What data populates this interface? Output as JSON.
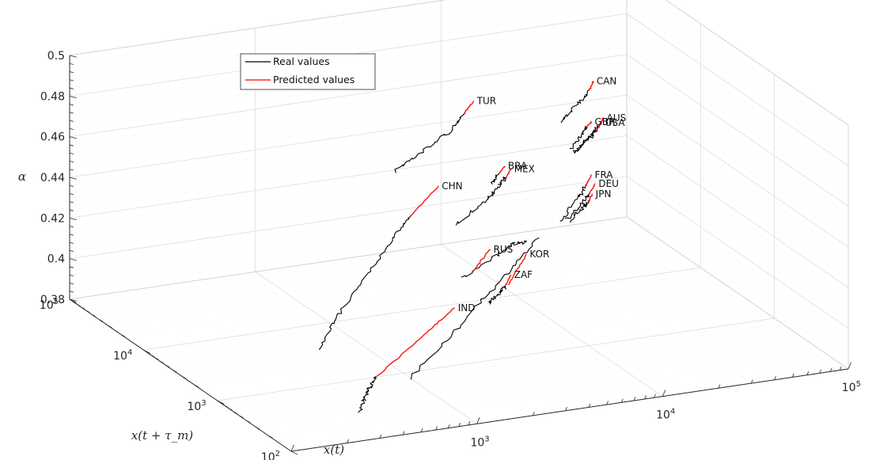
{
  "chart_data": {
    "type": "line3d",
    "title": "",
    "xlabel": "x(t)",
    "ylabel": "x(t + τ_m)",
    "zlabel": "α",
    "x_scale": "log",
    "y_scale": "log",
    "xlim": [
      100,
      100000
    ],
    "ylim": [
      100,
      100000
    ],
    "zlim": [
      0.38,
      0.5
    ],
    "x_ticks": [
      {
        "value": 100,
        "base": "10",
        "exp": "2"
      },
      {
        "value": 1000,
        "base": "10",
        "exp": "3"
      },
      {
        "value": 10000,
        "base": "10",
        "exp": "4"
      },
      {
        "value": 100000,
        "base": "10",
        "exp": "5"
      }
    ],
    "y_ticks": [
      {
        "value": 100,
        "base": "10",
        "exp": "2"
      },
      {
        "value": 1000,
        "base": "10",
        "exp": "3"
      },
      {
        "value": 10000,
        "base": "10",
        "exp": "4"
      },
      {
        "value": 100000,
        "base": "10",
        "exp": "5"
      }
    ],
    "z_ticks": [
      "0.38",
      "0.4",
      "0.42",
      "0.44",
      "0.46",
      "0.48",
      "0.5"
    ],
    "grid": true,
    "legend_position": "top-left",
    "legend": [
      {
        "label": "Real values",
        "color": "#000000"
      },
      {
        "label": "Predicted values",
        "color": "#ff0000"
      }
    ],
    "colors": {
      "real": "#000000",
      "predicted": "#ff0000"
    },
    "series": [
      {
        "label": "TUR",
        "real": [
          [
            900,
            1000,
            0.48
          ],
          [
            1500,
            1500,
            0.482
          ],
          [
            2500,
            2200,
            0.486
          ],
          [
            3300,
            3000,
            0.489
          ]
        ],
        "predicted": [
          [
            3300,
            3000,
            0.489
          ],
          [
            4000,
            3600,
            0.492
          ]
        ]
      },
      {
        "label": "CHN",
        "real": [
          [
            160,
            130,
            0.425
          ],
          [
            250,
            250,
            0.43
          ],
          [
            500,
            520,
            0.44
          ],
          [
            900,
            1000,
            0.448
          ],
          [
            1300,
            1500,
            0.452
          ]
        ],
        "predicted": [
          [
            1300,
            1500,
            0.452
          ],
          [
            2200,
            2400,
            0.458
          ]
        ]
      },
      {
        "label": "CAN",
        "real": [
          [
            22000,
            17000,
            0.455
          ],
          [
            32000,
            25000,
            0.458
          ],
          [
            40000,
            32000,
            0.46
          ]
        ],
        "predicted": [
          [
            40000,
            32000,
            0.46
          ],
          [
            45000,
            38000,
            0.462
          ]
        ]
      },
      {
        "label": "BRA",
        "real": [
          [
            5500,
            4500,
            0.447
          ],
          [
            6500,
            5500,
            0.449
          ]
        ],
        "predicted": [
          [
            6500,
            5500,
            0.449
          ],
          [
            7200,
            6000,
            0.451
          ]
        ]
      },
      {
        "label": "MEX",
        "real": [
          [
            2500,
            2000,
            0.44
          ],
          [
            5000,
            4000,
            0.441
          ],
          [
            6500,
            5500,
            0.443
          ],
          [
            7500,
            6500,
            0.444
          ]
        ],
        "predicted": [
          [
            7500,
            6500,
            0.444
          ],
          [
            8500,
            7500,
            0.446
          ]
        ]
      },
      {
        "label": "GBR",
        "real": [
          [
            28000,
            23000,
            0.437
          ],
          [
            36000,
            30000,
            0.44
          ],
          [
            40000,
            35000,
            0.441
          ]
        ],
        "predicted": [
          [
            40000,
            35000,
            0.441
          ],
          [
            44000,
            38000,
            0.442
          ]
        ]
      },
      {
        "label": "AUS",
        "real": [
          [
            30000,
            25000,
            0.434
          ],
          [
            42000,
            35000,
            0.437
          ],
          [
            50000,
            42000,
            0.438
          ]
        ],
        "predicted": [
          [
            50000,
            42000,
            0.438
          ],
          [
            56000,
            48000,
            0.44
          ]
        ]
      },
      {
        "label": "USA",
        "real": [
          [
            33000,
            32000,
            0.43
          ],
          [
            44000,
            42000,
            0.432
          ],
          [
            52000,
            50000,
            0.434
          ]
        ],
        "predicted": [
          [
            52000,
            50000,
            0.434
          ],
          [
            58000,
            55000,
            0.436
          ]
        ]
      },
      {
        "label": "FRA",
        "real": [
          [
            22000,
            18000,
            0.405
          ],
          [
            32000,
            26000,
            0.41
          ],
          [
            38000,
            32000,
            0.413
          ]
        ],
        "predicted": [
          [
            38000,
            32000,
            0.413
          ],
          [
            44000,
            38000,
            0.416
          ]
        ]
      },
      {
        "label": "DEU",
        "real": [
          [
            26000,
            22000,
            0.403
          ],
          [
            36000,
            30000,
            0.406
          ],
          [
            42000,
            36000,
            0.408
          ]
        ],
        "predicted": [
          [
            42000,
            36000,
            0.408
          ],
          [
            48000,
            42000,
            0.41
          ]
        ]
      },
      {
        "label": "RUS",
        "real": [
          [
            3000,
            2500,
            0.41
          ],
          [
            6000,
            5000,
            0.41
          ],
          [
            9000,
            8000,
            0.408
          ],
          [
            12000,
            11000,
            0.404
          ]
        ],
        "predicted": [
          [
            3800,
            3200,
            0.41
          ],
          [
            5500,
            4800,
            0.414
          ]
        ]
      },
      {
        "label": "JPN",
        "real": [
          [
            30000,
            28000,
            0.399
          ],
          [
            40000,
            38000,
            0.401
          ],
          [
            44000,
            42000,
            0.402
          ]
        ],
        "predicted": [
          [
            44000,
            42000,
            0.402
          ],
          [
            48000,
            46000,
            0.404
          ]
        ]
      },
      {
        "label": "KOR",
        "real": [
          [
            1000,
            800,
            0.38
          ],
          [
            3000,
            2500,
            0.388
          ],
          [
            7000,
            6000,
            0.396
          ],
          [
            15000,
            13000,
            0.403
          ]
        ],
        "predicted": [
          [
            8000,
            7000,
            0.39
          ],
          [
            12000,
            11000,
            0.398
          ]
        ]
      },
      {
        "label": "ZAF",
        "real": [
          [
            5000,
            4000,
            0.39
          ],
          [
            6500,
            5500,
            0.39
          ],
          [
            7500,
            6500,
            0.391
          ]
        ],
        "predicted": [
          [
            7500,
            6500,
            0.391
          ],
          [
            8500,
            7500,
            0.394
          ]
        ]
      },
      {
        "label": "IND",
        "real": [
          [
            360,
            300,
            0.38
          ],
          [
            400,
            330,
            0.385
          ],
          [
            450,
            380,
            0.388
          ],
          [
            520,
            440,
            0.391
          ]
        ],
        "predicted": [
          [
            520,
            440,
            0.391
          ],
          [
            1500,
            1300,
            0.395
          ],
          [
            2600,
            2200,
            0.398
          ]
        ]
      }
    ]
  }
}
